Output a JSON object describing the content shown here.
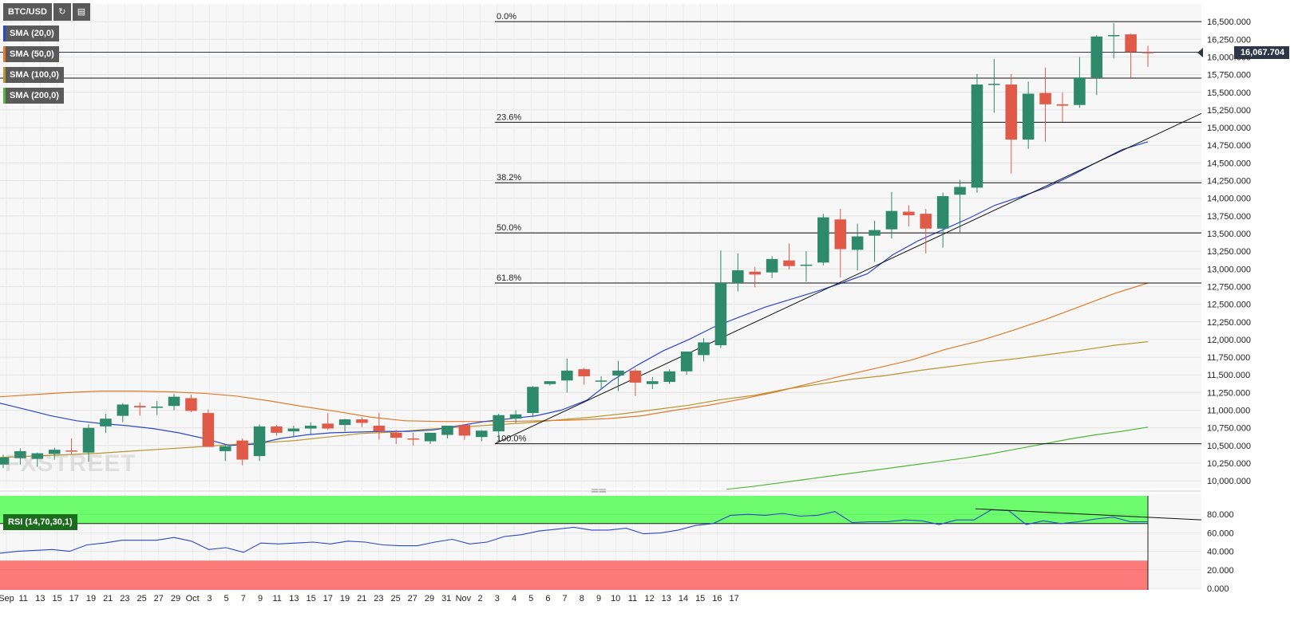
{
  "toolbar": {
    "symbol": "BTC/USD",
    "refresh_icon": "refresh-icon",
    "settings_icon": "chart-settings-icon"
  },
  "indicators": [
    {
      "label": "SMA (20,0)",
      "color": "#2a47c9"
    },
    {
      "label": "SMA (50,0)",
      "color": "#e07a2b"
    },
    {
      "label": "SMA (100,0)",
      "color": "#b8962e"
    },
    {
      "label": "SMA (200,0)",
      "color": "#54b53a"
    }
  ],
  "rsi_label": "RSI (14,70,30,1)",
  "current_price": "16,067.704",
  "watermark": "FXSTREET",
  "colors": {
    "up": "#2f8a6b",
    "down": "#e05a48",
    "rsi_line": "#2a47c9",
    "overbought": "#6dfc6d",
    "oversold": "#fd7a7a"
  },
  "chart_data": {
    "type": "candlestick",
    "x_ticks": [
      "Sep",
      "11",
      "13",
      "15",
      "17",
      "19",
      "21",
      "23",
      "25",
      "27",
      "29",
      "Oct",
      "3",
      "5",
      "7",
      "9",
      "11",
      "13",
      "15",
      "17",
      "19",
      "21",
      "23",
      "25",
      "27",
      "29",
      "31",
      "Nov",
      "2",
      "3",
      "4",
      "5",
      "6",
      "7",
      "8",
      "9",
      "10",
      "11",
      "12",
      "13",
      "14",
      "15",
      "16",
      "17"
    ],
    "y_ticks": [
      "16,500.000",
      "16,250.000",
      "16,000.000",
      "15,750.000",
      "15,500.000",
      "15,250.000",
      "15,000.000",
      "14,750.000",
      "14,500.000",
      "14,250.000",
      "14,000.000",
      "13,750.000",
      "13,500.000",
      "13,250.000",
      "13,000.000",
      "12,750.000",
      "12,500.000",
      "12,250.000",
      "12,000.000",
      "11,750.000",
      "11,500.000",
      "11,250.000",
      "11,000.000",
      "10,750.000",
      "10,500.000",
      "10,250.000",
      "10,000.000"
    ],
    "ylim": [
      9900,
      16750
    ],
    "candles": [
      {
        "o": 10230,
        "h": 10370,
        "l": 10180,
        "c": 10330
      },
      {
        "o": 10320,
        "h": 10460,
        "l": 10230,
        "c": 10420
      },
      {
        "o": 10310,
        "h": 10400,
        "l": 10200,
        "c": 10390
      },
      {
        "o": 10380,
        "h": 10470,
        "l": 10300,
        "c": 10440
      },
      {
        "o": 10430,
        "h": 10600,
        "l": 10380,
        "c": 10420
      },
      {
        "o": 10400,
        "h": 10800,
        "l": 10270,
        "c": 10750
      },
      {
        "o": 10770,
        "h": 10950,
        "l": 10680,
        "c": 10880
      },
      {
        "o": 10920,
        "h": 11100,
        "l": 10830,
        "c": 11080
      },
      {
        "o": 11060,
        "h": 11110,
        "l": 10920,
        "c": 11040
      },
      {
        "o": 11040,
        "h": 11130,
        "l": 10930,
        "c": 11050
      },
      {
        "o": 11060,
        "h": 11230,
        "l": 11000,
        "c": 11190
      },
      {
        "o": 11170,
        "h": 11220,
        "l": 10970,
        "c": 10990
      },
      {
        "o": 10960,
        "h": 11010,
        "l": 10500,
        "c": 10480
      },
      {
        "o": 10420,
        "h": 10520,
        "l": 10280,
        "c": 10490
      },
      {
        "o": 10570,
        "h": 10600,
        "l": 10220,
        "c": 10300
      },
      {
        "o": 10350,
        "h": 10800,
        "l": 10280,
        "c": 10770
      },
      {
        "o": 10770,
        "h": 10790,
        "l": 10640,
        "c": 10680
      },
      {
        "o": 10700,
        "h": 10780,
        "l": 10620,
        "c": 10740
      },
      {
        "o": 10740,
        "h": 10830,
        "l": 10660,
        "c": 10780
      },
      {
        "o": 10810,
        "h": 10960,
        "l": 10720,
        "c": 10740
      },
      {
        "o": 10790,
        "h": 10880,
        "l": 10700,
        "c": 10870
      },
      {
        "o": 10870,
        "h": 10900,
        "l": 10760,
        "c": 10820
      },
      {
        "o": 10780,
        "h": 10960,
        "l": 10580,
        "c": 10700
      },
      {
        "o": 10680,
        "h": 10720,
        "l": 10520,
        "c": 10610
      },
      {
        "o": 10600,
        "h": 10680,
        "l": 10500,
        "c": 10590
      },
      {
        "o": 10560,
        "h": 10640,
        "l": 10520,
        "c": 10680
      },
      {
        "o": 10650,
        "h": 10770,
        "l": 10600,
        "c": 10780
      },
      {
        "o": 10790,
        "h": 10800,
        "l": 10580,
        "c": 10640
      },
      {
        "o": 10620,
        "h": 10720,
        "l": 10560,
        "c": 10710
      },
      {
        "o": 10700,
        "h": 10950,
        "l": 10580,
        "c": 10930
      },
      {
        "o": 10880,
        "h": 11000,
        "l": 10820,
        "c": 10940
      },
      {
        "o": 10960,
        "h": 11340,
        "l": 10900,
        "c": 11330
      },
      {
        "o": 11370,
        "h": 11400,
        "l": 11350,
        "c": 11410
      },
      {
        "o": 11420,
        "h": 11730,
        "l": 11250,
        "c": 11560
      },
      {
        "o": 11580,
        "h": 11600,
        "l": 11360,
        "c": 11480
      },
      {
        "o": 11420,
        "h": 11480,
        "l": 11300,
        "c": 11420
      },
      {
        "o": 11490,
        "h": 11700,
        "l": 11270,
        "c": 11560
      },
      {
        "o": 11560,
        "h": 11590,
        "l": 11200,
        "c": 11390
      },
      {
        "o": 11370,
        "h": 11470,
        "l": 11300,
        "c": 11410
      },
      {
        "o": 11400,
        "h": 11580,
        "l": 11370,
        "c": 11550
      },
      {
        "o": 11550,
        "h": 11830,
        "l": 11500,
        "c": 11830
      },
      {
        "o": 11780,
        "h": 12020,
        "l": 11690,
        "c": 11960
      },
      {
        "o": 11920,
        "h": 13260,
        "l": 11880,
        "c": 12800
      },
      {
        "o": 12800,
        "h": 13220,
        "l": 12680,
        "c": 12980
      },
      {
        "o": 12960,
        "h": 13030,
        "l": 12740,
        "c": 12920
      },
      {
        "o": 12950,
        "h": 13180,
        "l": 12870,
        "c": 13140
      },
      {
        "o": 13120,
        "h": 13360,
        "l": 12990,
        "c": 13040
      },
      {
        "o": 13060,
        "h": 13250,
        "l": 12820,
        "c": 13060
      },
      {
        "o": 13090,
        "h": 13780,
        "l": 13050,
        "c": 13730
      },
      {
        "o": 13700,
        "h": 13850,
        "l": 12880,
        "c": 13280
      },
      {
        "o": 13270,
        "h": 13640,
        "l": 12980,
        "c": 13460
      },
      {
        "o": 13470,
        "h": 13680,
        "l": 13100,
        "c": 13550
      },
      {
        "o": 13560,
        "h": 14090,
        "l": 13430,
        "c": 13820
      },
      {
        "o": 13810,
        "h": 13900,
        "l": 13600,
        "c": 13760
      },
      {
        "o": 13780,
        "h": 13850,
        "l": 13220,
        "c": 13570
      },
      {
        "o": 13570,
        "h": 14080,
        "l": 13300,
        "c": 14030
      },
      {
        "o": 14050,
        "h": 14260,
        "l": 13520,
        "c": 14160
      },
      {
        "o": 14150,
        "h": 15760,
        "l": 14080,
        "c": 15610
      },
      {
        "o": 15620,
        "h": 15970,
        "l": 15210,
        "c": 15620
      },
      {
        "o": 15610,
        "h": 15760,
        "l": 14350,
        "c": 14830
      },
      {
        "o": 14830,
        "h": 15650,
        "l": 14700,
        "c": 15480
      },
      {
        "o": 15490,
        "h": 15850,
        "l": 14800,
        "c": 15330
      },
      {
        "o": 15330,
        "h": 15500,
        "l": 15080,
        "c": 15310
      },
      {
        "o": 15320,
        "h": 16000,
        "l": 15280,
        "c": 15710
      },
      {
        "o": 15710,
        "h": 16310,
        "l": 15460,
        "c": 16290
      },
      {
        "o": 16310,
        "h": 16480,
        "l": 15980,
        "c": 16310
      },
      {
        "o": 16320,
        "h": 16330,
        "l": 15710,
        "c": 16070
      },
      {
        "o": 16070,
        "h": 16160,
        "l": 15860,
        "c": 16060
      }
    ],
    "sma20": [
      11100,
      11010,
      10920,
      10850,
      10810,
      10780,
      10740,
      10680,
      10600,
      10500,
      10520,
      10600,
      10650,
      10680,
      10690,
      10700,
      10700,
      10720,
      10780,
      10840,
      10880,
      10920,
      11000,
      11140,
      11420,
      11640,
      11840,
      12000,
      12180,
      12320,
      12460,
      12570,
      12680,
      12800,
      12930,
      13200,
      13400,
      13560,
      13720,
      13900,
      14020,
      14150,
      14320,
      14510,
      14690,
      14800
    ],
    "sma50": [
      11190,
      11220,
      11250,
      11270,
      11270,
      11260,
      11240,
      11200,
      11130,
      11050,
      10980,
      10900,
      10850,
      10840,
      10840,
      10840,
      10850,
      10860,
      10880,
      10920,
      11000,
      11070,
      11160,
      11260,
      11380,
      11490,
      11600,
      11710,
      11860,
      11980,
      12130,
      12290,
      12470,
      12650,
      12800
    ],
    "sma100": [
      10330,
      10350,
      10370,
      10390,
      10420,
      10450,
      10480,
      10510,
      10540,
      10570,
      10620,
      10670,
      10690,
      10730,
      10760,
      10790,
      10820,
      10860,
      10900,
      10950,
      11010,
      11070,
      11150,
      11210,
      11300,
      11370,
      11440,
      11490,
      11560,
      11620,
      11680,
      11730,
      11790,
      11850,
      11920,
      11970
    ],
    "sma200": [
      9880,
      9920,
      9970,
      10020,
      10070,
      10120,
      10170,
      10220,
      10270,
      10320,
      10380,
      10450,
      10520,
      10590,
      10650,
      10700,
      10760
    ],
    "fib_levels": [
      {
        "label": "0.0%",
        "price": 16500
      },
      {
        "label": "23.6%",
        "price": 15075
      },
      {
        "label": "38.2%",
        "price": 14220
      },
      {
        "label": "50.0%",
        "price": 13510
      },
      {
        "label": "61.8%",
        "price": 12800
      },
      {
        "label": "100.0%",
        "price": 10525
      }
    ],
    "current_price_line": 16067.704,
    "fib_extra_line": 15700,
    "rsi": {
      "y_ticks": [
        "80.000",
        "60.000",
        "40.000",
        "20.000",
        "0.000"
      ],
      "ylim": [
        0,
        100
      ],
      "overbought": 70,
      "oversold": 30,
      "values": [
        38,
        40,
        41,
        42,
        40,
        47,
        49,
        52,
        52,
        52,
        55,
        51,
        42,
        44,
        39,
        49,
        48,
        49,
        50,
        48,
        51,
        50,
        47,
        46,
        46,
        50,
        53,
        48,
        50,
        56,
        58,
        62,
        64,
        66,
        63,
        63,
        65,
        59,
        60,
        63,
        68,
        70,
        79,
        80,
        79,
        81,
        78,
        79,
        83,
        71,
        72,
        72,
        74,
        73,
        69,
        74,
        74,
        85,
        84,
        69,
        73,
        70,
        72,
        75,
        77,
        72,
        72
      ]
    }
  }
}
